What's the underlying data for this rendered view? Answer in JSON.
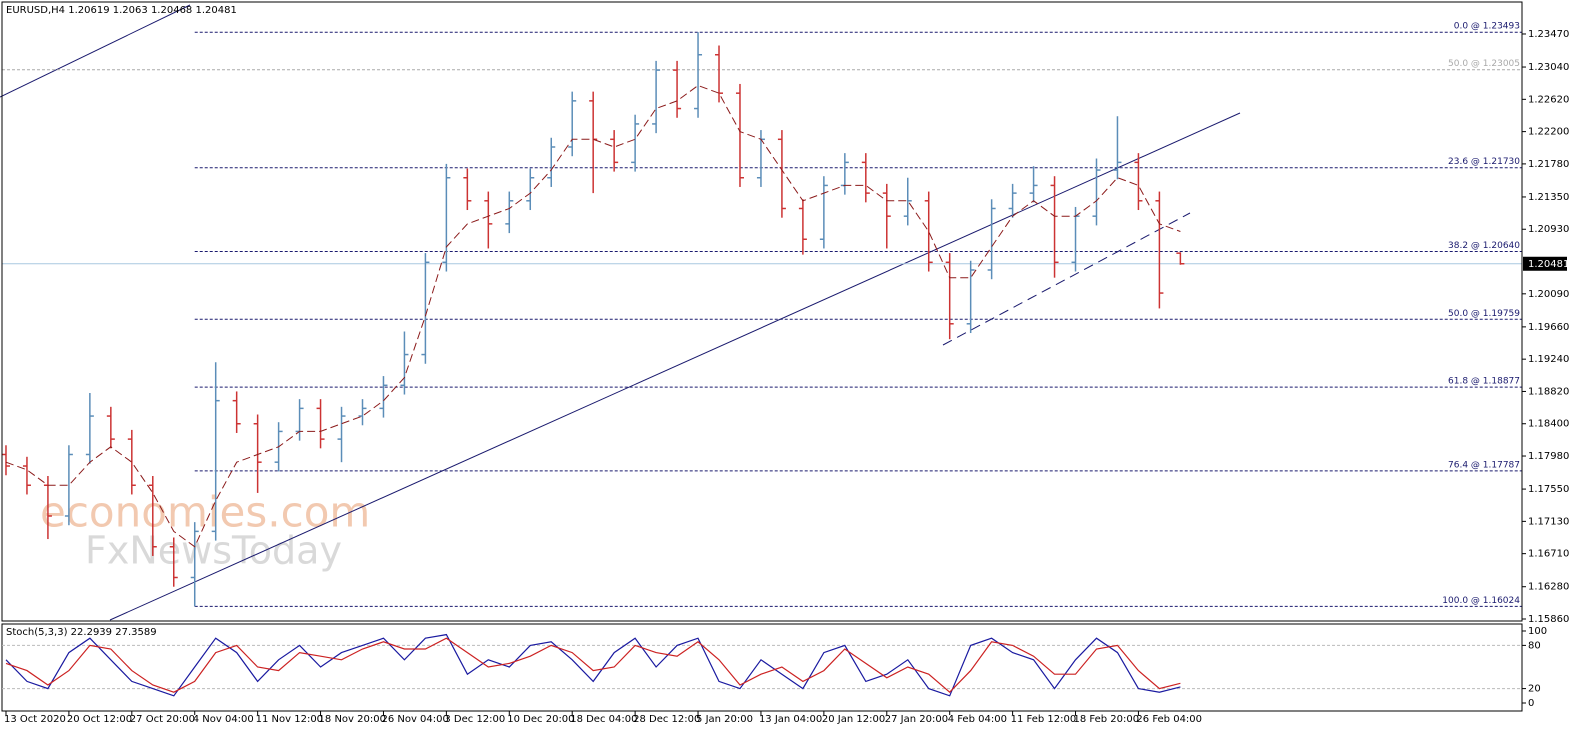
{
  "chart_data": [
    {
      "type": "ohlc",
      "symbol": "EURUSD,H4",
      "watermark": [
        "economies.com",
        "FxNewsToday"
      ],
      "up_color": "#5b8db8",
      "down_color": "#cc3333",
      "ma_color": "#8b1a1a",
      "xlim": [
        -0.19,
        72.29
      ],
      "xticks": [
        {
          "value": 0,
          "label": "13 Oct 2020"
        },
        {
          "value": 3,
          "label": "20 Oct 12:00"
        },
        {
          "value": 6,
          "label": "27 Oct 20:00"
        },
        {
          "value": 9,
          "label": "4 Nov 04:00"
        },
        {
          "value": 12,
          "label": "11 Nov 12:00"
        },
        {
          "value": 15,
          "label": "18 Nov 20:00"
        },
        {
          "value": 18,
          "label": "26 Nov 04:00"
        },
        {
          "value": 21,
          "label": "3 Dec 12:00"
        },
        {
          "value": 24,
          "label": "10 Dec 20:00"
        },
        {
          "value": 27,
          "label": "18 Dec 04:00"
        },
        {
          "value": 30,
          "label": "28 Dec 12:00"
        },
        {
          "value": 33,
          "label": "5 Jan 20:00"
        },
        {
          "value": 36,
          "label": "13 Jan 04:00"
        },
        {
          "value": 39,
          "label": "20 Jan 12:00"
        },
        {
          "value": 42,
          "label": "27 Jan 20:00"
        },
        {
          "value": 45,
          "label": "4 Feb 04:00"
        },
        {
          "value": 48,
          "label": "11 Feb 12:00"
        },
        {
          "value": 51,
          "label": "18 Feb 20:00"
        },
        {
          "value": 54,
          "label": "26 Feb 04:00"
        }
      ],
      "ylim": [
        1.15834,
        1.23886
      ],
      "yticks": [
        {
          "value": 1.2347,
          "label": "1.23470"
        },
        {
          "value": 1.2304,
          "label": "1.23040"
        },
        {
          "value": 1.2262,
          "label": "1.22620"
        },
        {
          "value": 1.222,
          "label": "1.22200"
        },
        {
          "value": 1.2178,
          "label": "1.21780"
        },
        {
          "value": 1.2135,
          "label": "1.21350"
        },
        {
          "value": 1.2093,
          "label": "1.20930"
        },
        {
          "value": 1.2009,
          "label": "1.20090"
        },
        {
          "value": 1.1966,
          "label": "1.19660"
        },
        {
          "value": 1.1924,
          "label": "1.19240"
        },
        {
          "value": 1.1882,
          "label": "1.18820"
        },
        {
          "value": 1.184,
          "label": "1.18400"
        },
        {
          "value": 1.1798,
          "label": "1.17980"
        },
        {
          "value": 1.1755,
          "label": "1.17550"
        },
        {
          "value": 1.1713,
          "label": "1.17130"
        },
        {
          "value": 1.1671,
          "label": "1.16710"
        },
        {
          "value": 1.1628,
          "label": "1.16280"
        },
        {
          "value": 1.1586,
          "label": "1.15860"
        }
      ],
      "fib_levels": [
        {
          "label": "0.0 @ 1.23493",
          "price": 1.23493,
          "color": "#1a1a6e"
        },
        {
          "label": "50.0 @ 1.23005",
          "price": 1.23005,
          "color": "#aaaaaa"
        },
        {
          "label": "23.6 @ 1.21730",
          "price": 1.2173,
          "color": "#1a1a6e"
        },
        {
          "label": "38.2 @ 1.20640",
          "price": 1.2064,
          "color": "#1a1a6e"
        },
        {
          "label": "50.0 @ 1.19759",
          "price": 1.19759,
          "color": "#1a1a6e"
        },
        {
          "label": "61.8 @ 1.18877",
          "price": 1.18877,
          "color": "#1a1a6e"
        },
        {
          "label": "76.4 @ 1.17787",
          "price": 1.17787,
          "color": "#1a1a6e"
        },
        {
          "label": "100.0 @ 1.16024",
          "price": 1.16024,
          "color": "#1a1a6e"
        }
      ],
      "open": [
        1.18,
        1.1785,
        1.176,
        1.172,
        1.18,
        1.185,
        1.182,
        1.176,
        1.168,
        1.164,
        1.17,
        1.187,
        1.184,
        1.179,
        1.183,
        1.186,
        1.182,
        1.185,
        1.186,
        1.189,
        1.193,
        1.205,
        1.216,
        1.213,
        1.21,
        1.213,
        1.216,
        1.22,
        1.226,
        1.221,
        1.218,
        1.223,
        1.23,
        1.225,
        1.232,
        1.227,
        1.216,
        1.221,
        1.212,
        1.208,
        1.215,
        1.218,
        1.214,
        1.211,
        1.213,
        1.205,
        1.197,
        1.204,
        1.212,
        1.214,
        1.215,
        1.205,
        1.211,
        1.217,
        1.218,
        1.213,
        1.20619
      ],
      "high": [
        1.1812,
        1.1797,
        1.1772,
        1.1812,
        1.188,
        1.1862,
        1.1832,
        1.1772,
        1.1692,
        1.1712,
        1.192,
        1.1882,
        1.1852,
        1.1842,
        1.1872,
        1.1872,
        1.1862,
        1.1872,
        1.1902,
        1.196,
        1.2062,
        1.2178,
        1.2172,
        1.2142,
        1.2142,
        1.2172,
        1.2212,
        1.2272,
        1.2272,
        1.2222,
        1.2242,
        1.2312,
        1.2312,
        1.23493,
        1.2332,
        1.2282,
        1.2222,
        1.2222,
        1.2132,
        1.2162,
        1.2192,
        1.2192,
        1.2152,
        1.216,
        1.2142,
        1.2062,
        1.2052,
        1.2132,
        1.2152,
        1.2175,
        1.2162,
        1.2122,
        1.2185,
        1.224,
        1.2192,
        1.2142,
        1.2063
      ],
      "low": [
        1.1773,
        1.1748,
        1.169,
        1.1708,
        1.1788,
        1.1808,
        1.1748,
        1.1668,
        1.1628,
        1.16024,
        1.1688,
        1.1828,
        1.175,
        1.1778,
        1.1818,
        1.1808,
        1.179,
        1.1838,
        1.1848,
        1.1878,
        1.1918,
        1.2038,
        1.2118,
        1.2068,
        1.2088,
        1.2118,
        1.2148,
        1.2188,
        1.214,
        1.2168,
        1.2168,
        1.2218,
        1.2238,
        1.2238,
        1.2258,
        1.2148,
        1.2148,
        1.2108,
        1.206,
        1.2068,
        1.2138,
        1.2128,
        1.2068,
        1.2098,
        1.2038,
        1.195,
        1.1958,
        1.2028,
        1.2108,
        1.2128,
        1.203,
        1.2038,
        1.2098,
        1.2158,
        1.2118,
        1.199,
        1.20468
      ],
      "close": [
        1.1785,
        1.176,
        1.172,
        1.18,
        1.185,
        1.182,
        1.176,
        1.168,
        1.164,
        1.17,
        1.187,
        1.184,
        1.179,
        1.183,
        1.186,
        1.182,
        1.185,
        1.186,
        1.189,
        1.193,
        1.205,
        1.216,
        1.213,
        1.21,
        1.213,
        1.216,
        1.22,
        1.226,
        1.221,
        1.218,
        1.223,
        1.23,
        1.225,
        1.232,
        1.227,
        1.216,
        1.221,
        1.212,
        1.208,
        1.215,
        1.218,
        1.214,
        1.211,
        1.213,
        1.205,
        1.197,
        1.204,
        1.212,
        1.214,
        1.215,
        1.205,
        1.211,
        1.217,
        1.218,
        1.213,
        1.201,
        1.20481
      ],
      "ma": [
        1.179,
        1.178,
        1.176,
        1.176,
        1.179,
        1.181,
        1.179,
        1.175,
        1.17,
        1.168,
        1.174,
        1.179,
        1.18,
        1.181,
        1.183,
        1.183,
        1.184,
        1.185,
        1.187,
        1.19,
        1.198,
        1.207,
        1.21,
        1.211,
        1.212,
        1.214,
        1.217,
        1.221,
        1.221,
        1.22,
        1.221,
        1.225,
        1.226,
        1.228,
        1.227,
        1.222,
        1.221,
        1.217,
        1.213,
        1.214,
        1.215,
        1.215,
        1.213,
        1.213,
        1.209,
        1.203,
        1.203,
        1.207,
        1.211,
        1.213,
        1.211,
        1.211,
        1.213,
        1.216,
        1.215,
        1.21,
        1.209
      ]
    },
    {
      "type": "line",
      "title": "Stoch(5,3,3)",
      "xlim": [
        -0.19,
        72.29
      ],
      "ylim": [
        -11.1,
        109.7
      ],
      "yticks": [
        100,
        80,
        20,
        0
      ],
      "levels": [
        80,
        20
      ],
      "series": [
        {
          "color": "#1a1aa0",
          "values": [
            60,
            30,
            20,
            70,
            90,
            60,
            30,
            20,
            10,
            50,
            90,
            70,
            30,
            60,
            80,
            50,
            70,
            80,
            90,
            60,
            90,
            95,
            40,
            60,
            50,
            80,
            85,
            60,
            30,
            70,
            90,
            50,
            80,
            90,
            30,
            20,
            60,
            40,
            20,
            70,
            80,
            30,
            40,
            60,
            20,
            10,
            80,
            90,
            70,
            60,
            20,
            60,
            90,
            70,
            20,
            15,
            22.2939
          ]
        },
        {
          "color": "#cc2222",
          "values": [
            55,
            45,
            25,
            45,
            80,
            75,
            45,
            25,
            15,
            30,
            70,
            80,
            50,
            45,
            70,
            65,
            60,
            75,
            85,
            75,
            75,
            90,
            70,
            50,
            55,
            65,
            80,
            70,
            45,
            50,
            80,
            70,
            65,
            85,
            60,
            25,
            40,
            50,
            30,
            45,
            75,
            55,
            35,
            50,
            40,
            15,
            45,
            85,
            80,
            65,
            40,
            40,
            75,
            80,
            45,
            20,
            27.3589
          ]
        }
      ]
    }
  ]
}
